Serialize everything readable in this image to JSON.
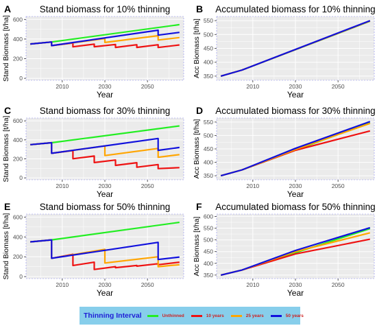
{
  "series_styles": [
    {
      "key": "unthinned",
      "color": "#22ee22"
    },
    {
      "key": "y10",
      "color": "#ee1111"
    },
    {
      "key": "y25",
      "color": "#ffa500"
    },
    {
      "key": "y50",
      "color": "#1010dd"
    }
  ],
  "legend": {
    "title": "Thinning Interval",
    "items": [
      {
        "label": "Unthinned",
        "color": "#22ee22"
      },
      {
        "label": "10 years",
        "color": "#ee1111"
      },
      {
        "label": "25 years",
        "color": "#ffa500"
      },
      {
        "label": "50 years",
        "color": "#1010dd"
      }
    ]
  },
  "chart_data": [
    {
      "panel": "A",
      "type": "line",
      "title": "Stand biomass for 10% thinning",
      "xlabel": "Year",
      "ylabel": "Stand Biomass [t/ha]",
      "xlim": [
        1993,
        2067
      ],
      "ylim": [
        -20,
        630
      ],
      "xticks": [
        2010,
        2030,
        2050
      ],
      "yticks": [
        0,
        200,
        400,
        600
      ],
      "series": [
        {
          "key": "unthinned",
          "x": [
            1995,
            2005,
            2065
          ],
          "y": [
            350,
            370,
            547
          ]
        },
        {
          "key": "y10",
          "x": [
            1995,
            2005,
            2005,
            2015,
            2015,
            2025,
            2025,
            2035,
            2035,
            2045,
            2045,
            2055,
            2055,
            2065
          ],
          "y": [
            350,
            370,
            333,
            360,
            321,
            348,
            322,
            345,
            315,
            342,
            315,
            342,
            314,
            340
          ]
        },
        {
          "key": "y25",
          "x": [
            1995,
            2005,
            2005,
            2030,
            2030,
            2055,
            2055,
            2065
          ],
          "y": [
            350,
            370,
            333,
            405,
            365,
            434,
            390,
            415
          ]
        },
        {
          "key": "y50",
          "x": [
            1995,
            2005,
            2005,
            2055,
            2055,
            2065
          ],
          "y": [
            350,
            370,
            333,
            490,
            440,
            468
          ]
        }
      ]
    },
    {
      "panel": "B",
      "type": "line",
      "title": "Accumulated biomass for 10% thinning",
      "xlabel": "Year",
      "ylabel": "Acc Biomass [t/ha]",
      "xlim": [
        1993,
        2067
      ],
      "ylim": [
        335,
        565
      ],
      "xticks": [
        2010,
        2030,
        2050
      ],
      "yticks": [
        350,
        400,
        450,
        500,
        550
      ],
      "series": [
        {
          "key": "unthinned",
          "x": [
            1995,
            2005,
            2065
          ],
          "y": [
            350,
            372,
            548
          ]
        },
        {
          "key": "y10",
          "x": [
            1995,
            2005,
            2065
          ],
          "y": [
            350,
            372,
            549
          ]
        },
        {
          "key": "y25",
          "x": [
            1995,
            2005,
            2065
          ],
          "y": [
            350,
            372,
            549
          ]
        },
        {
          "key": "y50",
          "x": [
            1995,
            2005,
            2065
          ],
          "y": [
            350,
            372,
            550
          ]
        }
      ]
    },
    {
      "panel": "C",
      "type": "line",
      "title": "Stand biomass for 30% thinning",
      "xlabel": "Year",
      "ylabel": "Stand Biomass [t/ha]",
      "xlim": [
        1993,
        2067
      ],
      "ylim": [
        -20,
        630
      ],
      "xticks": [
        2010,
        2030,
        2050
      ],
      "yticks": [
        0,
        200,
        400,
        600
      ],
      "series": [
        {
          "key": "unthinned",
          "x": [
            1995,
            2005,
            2065
          ],
          "y": [
            350,
            370,
            547
          ]
        },
        {
          "key": "y10",
          "x": [
            1995,
            2005,
            2005,
            2015,
            2015,
            2025,
            2025,
            2035,
            2035,
            2045,
            2045,
            2055,
            2055,
            2065
          ],
          "y": [
            350,
            370,
            259,
            288,
            202,
            230,
            161,
            188,
            132,
            160,
            112,
            140,
            98,
            108
          ]
        },
        {
          "key": "y25",
          "x": [
            1995,
            2005,
            2005,
            2030,
            2030,
            2055,
            2055,
            2065
          ],
          "y": [
            350,
            370,
            259,
            336,
            235,
            310,
            217,
            245
          ]
        },
        {
          "key": "y50",
          "x": [
            1995,
            2005,
            2005,
            2055,
            2055,
            2065
          ],
          "y": [
            350,
            370,
            259,
            415,
            290,
            320
          ]
        }
      ]
    },
    {
      "panel": "D",
      "type": "line",
      "title": "Accumulated biomass for 30% thinning",
      "xlabel": "Year",
      "ylabel": "Acc Biomass [t/ha]",
      "xlim": [
        1993,
        2067
      ],
      "ylim": [
        335,
        565
      ],
      "xticks": [
        2010,
        2030,
        2050
      ],
      "yticks": [
        350,
        400,
        450,
        500,
        550
      ],
      "series": [
        {
          "key": "unthinned",
          "x": [
            1995,
            2005,
            2065
          ],
          "y": [
            350,
            372,
            548
          ]
        },
        {
          "key": "y10",
          "x": [
            1995,
            2005,
            2030,
            2065
          ],
          "y": [
            350,
            372,
            445,
            517
          ]
        },
        {
          "key": "y25",
          "x": [
            1995,
            2005,
            2030,
            2065
          ],
          "y": [
            350,
            372,
            448,
            545
          ]
        },
        {
          "key": "y50",
          "x": [
            1995,
            2005,
            2030,
            2065
          ],
          "y": [
            350,
            372,
            452,
            552
          ]
        }
      ]
    },
    {
      "panel": "E",
      "type": "line",
      "title": "Stand biomass for 50% thinning",
      "xlabel": "Year",
      "ylabel": "Stand Biomass [t/ha]",
      "xlim": [
        1993,
        2067
      ],
      "ylim": [
        -20,
        630
      ],
      "xticks": [
        2010,
        2030,
        2050
      ],
      "yticks": [
        0,
        200,
        400,
        600
      ],
      "series": [
        {
          "key": "unthinned",
          "x": [
            1995,
            2005,
            2065
          ],
          "y": [
            350,
            370,
            547
          ]
        },
        {
          "key": "y10",
          "x": [
            1995,
            2005,
            2005,
            2015,
            2015,
            2025,
            2025,
            2035,
            2035,
            2045,
            2045,
            2055,
            2055,
            2065
          ],
          "y": [
            350,
            370,
            185,
            225,
            112,
            145,
            72,
            100,
            90,
            112,
            105,
            130,
            120,
            145
          ]
        },
        {
          "key": "y25",
          "x": [
            1995,
            2005,
            2005,
            2030,
            2030,
            2055,
            2055,
            2065
          ],
          "y": [
            350,
            370,
            185,
            275,
            137,
            200,
            100,
            120
          ]
        },
        {
          "key": "y50",
          "x": [
            1995,
            2005,
            2005,
            2055,
            2055,
            2065
          ],
          "y": [
            350,
            370,
            185,
            345,
            172,
            197
          ]
        }
      ]
    },
    {
      "panel": "F",
      "type": "line",
      "title": "Accumulated biomass for 50% thinning",
      "xlabel": "Year",
      "ylabel": "Acc Biomass [t/ha]",
      "xlim": [
        1993,
        2067
      ],
      "ylim": [
        335,
        610
      ],
      "xticks": [
        2010,
        2030,
        2050
      ],
      "yticks": [
        350,
        400,
        450,
        500,
        550,
        600
      ],
      "series": [
        {
          "key": "unthinned",
          "x": [
            1995,
            2005,
            2065
          ],
          "y": [
            350,
            372,
            548
          ]
        },
        {
          "key": "y10",
          "x": [
            1995,
            2005,
            2030,
            2065
          ],
          "y": [
            350,
            372,
            440,
            503
          ]
        },
        {
          "key": "y25",
          "x": [
            1995,
            2005,
            2030,
            2065
          ],
          "y": [
            350,
            372,
            450,
            530
          ]
        },
        {
          "key": "y50",
          "x": [
            1995,
            2005,
            2030,
            2065
          ],
          "y": [
            350,
            372,
            455,
            552
          ]
        }
      ]
    }
  ]
}
